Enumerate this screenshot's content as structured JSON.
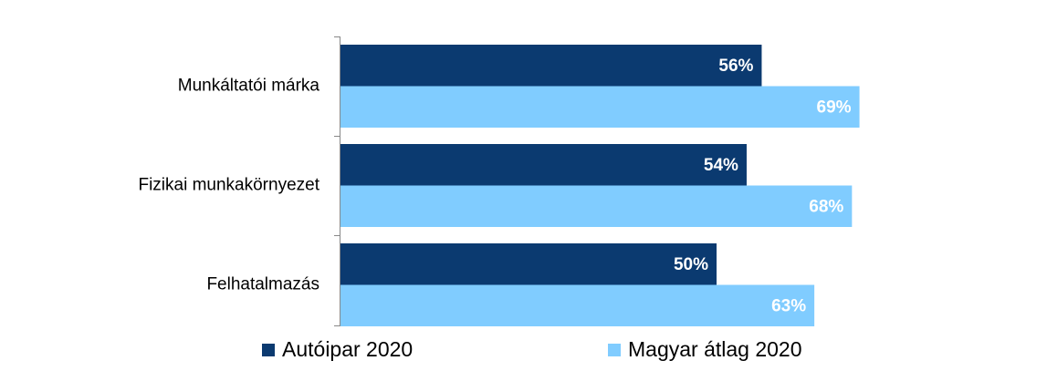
{
  "chart_data": {
    "type": "hbar",
    "categories": [
      "Munkáltatói márka",
      "Fizikai munkakörnyezet",
      "Felhatalmazás"
    ],
    "series": [
      {
        "name": "Autóipar 2020",
        "color": "#0b3a70",
        "values": [
          56,
          54,
          50
        ],
        "value_labels": [
          "56%",
          "54%",
          "50%"
        ]
      },
      {
        "name": "Magyar átlag 2020",
        "color": "#80ccff",
        "values": [
          69,
          68,
          63
        ],
        "value_labels": [
          "69%",
          "68%",
          "63%"
        ]
      }
    ],
    "legend": "bottom"
  }
}
